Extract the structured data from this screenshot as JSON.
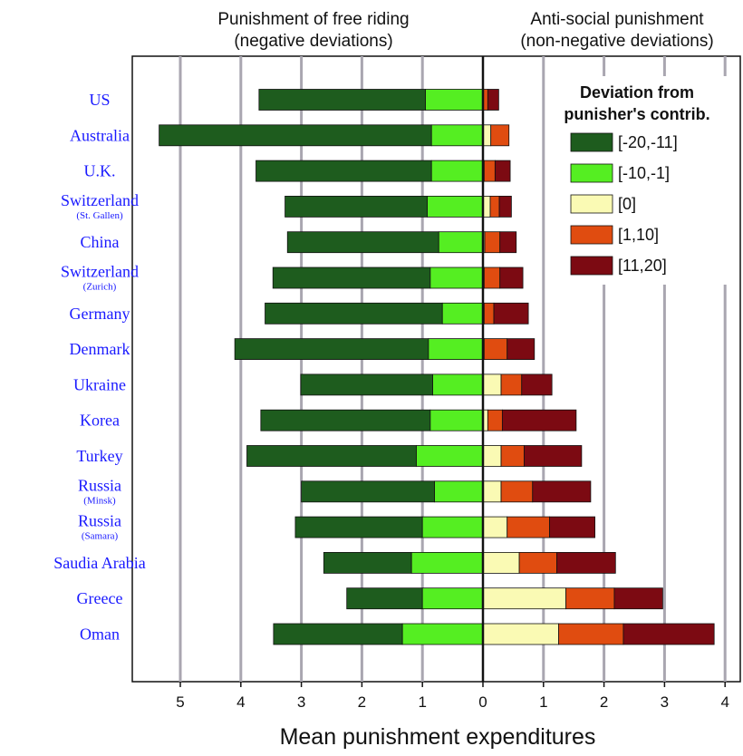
{
  "chart_data": {
    "type": "bar",
    "orientation": "horizontal-stacked-diverging",
    "headers": {
      "left_line1": "Punishment of free riding",
      "left_line2": "(negative deviations)",
      "right_line1": "Anti-social punishment",
      "right_line2": "(non-negative deviations)"
    },
    "xlabel": "Mean punishment expenditures",
    "xlim": [
      -5.5,
      4.2
    ],
    "x_ticks": [
      {
        "value": -5,
        "label": "5"
      },
      {
        "value": -4,
        "label": "4"
      },
      {
        "value": -3,
        "label": "3"
      },
      {
        "value": -2,
        "label": "2"
      },
      {
        "value": -1,
        "label": "1"
      },
      {
        "value": 0,
        "label": "0"
      },
      {
        "value": 1,
        "label": "1"
      },
      {
        "value": 2,
        "label": "2"
      },
      {
        "value": 3,
        "label": "3"
      },
      {
        "value": 4,
        "label": "4"
      }
    ],
    "grid": true,
    "legend": {
      "title_line1": "Deviation from",
      "title_line2": "punisher's contrib.",
      "placement": "top-right"
    },
    "series": [
      {
        "name": "[-20,-11]",
        "color": "#1e5c1e",
        "side": "left"
      },
      {
        "name": "[-10,-1]",
        "color": "#55ee22",
        "side": "left"
      },
      {
        "name": "[0]",
        "color": "#fafab4",
        "side": "right"
      },
      {
        "name": "[1,10]",
        "color": "#e04c10",
        "side": "right"
      },
      {
        "name": "[11,20]",
        "color": "#7c0a12",
        "side": "right"
      }
    ],
    "categories": [
      {
        "name": "US",
        "sub": "",
        "values": [
          2.75,
          0.95,
          0.0,
          0.08,
          0.18
        ]
      },
      {
        "name": "Australia",
        "sub": "",
        "values": [
          4.5,
          0.85,
          0.13,
          0.3,
          0.0
        ]
      },
      {
        "name": "U.K.",
        "sub": "",
        "values": [
          2.9,
          0.85,
          0.02,
          0.18,
          0.25
        ]
      },
      {
        "name": "Switzerland",
        "sub": "(St. Gallen)",
        "values": [
          2.35,
          0.92,
          0.12,
          0.15,
          0.2
        ]
      },
      {
        "name": "China",
        "sub": "",
        "values": [
          2.5,
          0.73,
          0.03,
          0.25,
          0.27
        ]
      },
      {
        "name": "Switzerland",
        "sub": "(Zurich)",
        "values": [
          2.6,
          0.87,
          0.02,
          0.26,
          0.38
        ]
      },
      {
        "name": "Germany",
        "sub": "",
        "values": [
          2.93,
          0.67,
          0.02,
          0.16,
          0.57
        ]
      },
      {
        "name": "Denmark",
        "sub": "",
        "values": [
          3.2,
          0.9,
          0.02,
          0.38,
          0.45
        ]
      },
      {
        "name": "Ukraine",
        "sub": "",
        "values": [
          2.18,
          0.83,
          0.3,
          0.34,
          0.5
        ]
      },
      {
        "name": "Korea",
        "sub": "",
        "values": [
          2.8,
          0.87,
          0.08,
          0.24,
          1.22
        ]
      },
      {
        "name": "Turkey",
        "sub": "",
        "values": [
          2.8,
          1.1,
          0.3,
          0.38,
          0.95
        ]
      },
      {
        "name": "Russia",
        "sub": "(Minsk)",
        "values": [
          2.2,
          0.8,
          0.3,
          0.52,
          0.96
        ]
      },
      {
        "name": "Russia",
        "sub": "(Samara)",
        "values": [
          2.1,
          1.0,
          0.4,
          0.7,
          0.75
        ]
      },
      {
        "name": "Saudia Arabia",
        "sub": "",
        "values": [
          1.45,
          1.18,
          0.6,
          0.62,
          0.97
        ]
      },
      {
        "name": "Greece",
        "sub": "",
        "values": [
          1.25,
          1.0,
          1.37,
          0.8,
          0.8
        ]
      },
      {
        "name": "Oman",
        "sub": "",
        "values": [
          2.13,
          1.33,
          1.25,
          1.07,
          1.5
        ]
      }
    ]
  }
}
